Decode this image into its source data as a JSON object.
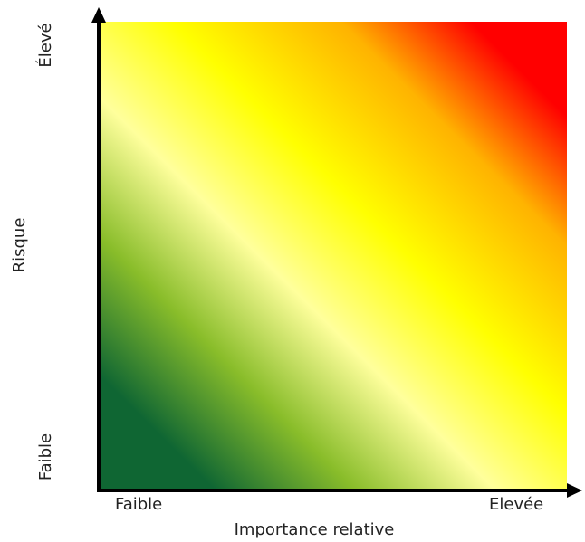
{
  "axes": {
    "x_title": "Importance relative",
    "x_low": "Faible",
    "x_high": "Elevée",
    "y_title": "Risque",
    "y_low": "Faible",
    "y_high": "Élevé"
  },
  "gradient_colors": {
    "dark_green": "#0f6633",
    "mid_green": "#89bd2a",
    "pale_yellow": "#ffff9c",
    "yellow": "#ffff00",
    "orange": "#ffb300",
    "red": "#ff0000"
  },
  "axis_color": "#000000"
}
